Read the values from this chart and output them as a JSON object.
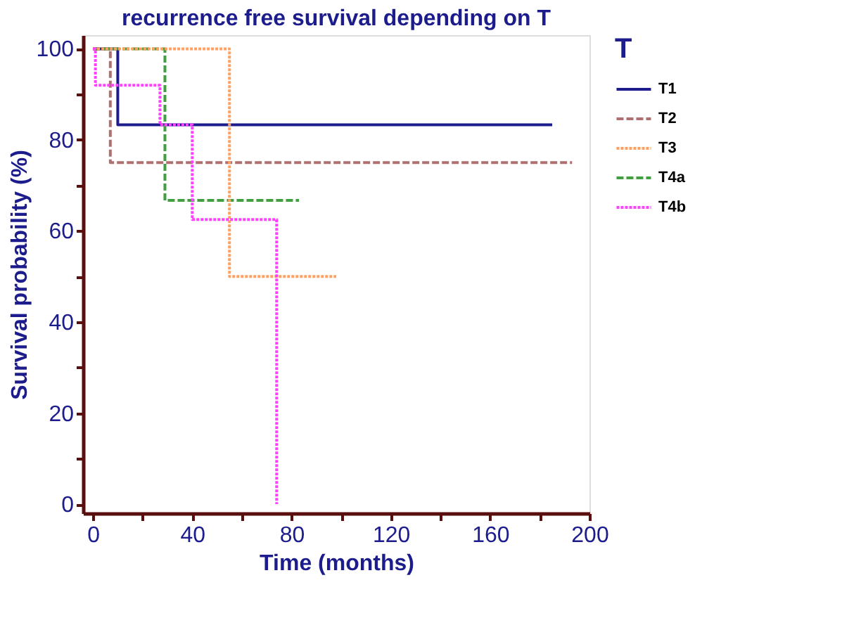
{
  "chart_data": {
    "type": "step",
    "title": "recurrence free survival depending on T",
    "xlabel": "Time (months)",
    "ylabel": "Survival probability (%)",
    "legend_title": "T",
    "legend": "right",
    "grid": false,
    "xlim": [
      -4,
      200
    ],
    "ylim": [
      -2,
      103
    ],
    "xticks": [
      0,
      {
        "value": 20,
        "label": null
      },
      40,
      {
        "value": 60,
        "label": null
      },
      80,
      {
        "value": 100,
        "label": null
      },
      120,
      {
        "value": 140,
        "label": null
      },
      160,
      {
        "value": 180,
        "label": null
      },
      200
    ],
    "yticks": [
      0,
      {
        "value": 10,
        "label": null
      },
      20,
      {
        "value": 30,
        "label": null
      },
      40,
      {
        "value": 50,
        "label": null
      },
      60,
      {
        "value": 70,
        "label": null
      },
      80,
      {
        "value": 90,
        "label": null
      },
      100
    ],
    "series": [
      {
        "name": "T1",
        "color": "#1c1c8c",
        "line_style": "solid",
        "x": [
          0,
          10,
          185
        ],
        "values": [
          100,
          83.3,
          83.3
        ]
      },
      {
        "name": "T2",
        "color": "#b07070",
        "line_style": "dashed",
        "x": [
          0,
          7,
          193
        ],
        "values": [
          100,
          75,
          75
        ]
      },
      {
        "name": "T3",
        "color": "#ffa060",
        "line_style": "dotted",
        "x": [
          0,
          55,
          98
        ],
        "values": [
          100,
          50,
          50
        ]
      },
      {
        "name": "T4a",
        "color": "#40a040",
        "line_style": "dashed",
        "x": [
          0,
          29,
          83
        ],
        "values": [
          100,
          66.7,
          66.7
        ]
      },
      {
        "name": "T4b",
        "color": "#ff40ff",
        "line_style": "dotted",
        "x": [
          0,
          1,
          27,
          40,
          74
        ],
        "values": [
          100,
          92,
          83.3,
          62.5,
          0
        ]
      }
    ]
  }
}
